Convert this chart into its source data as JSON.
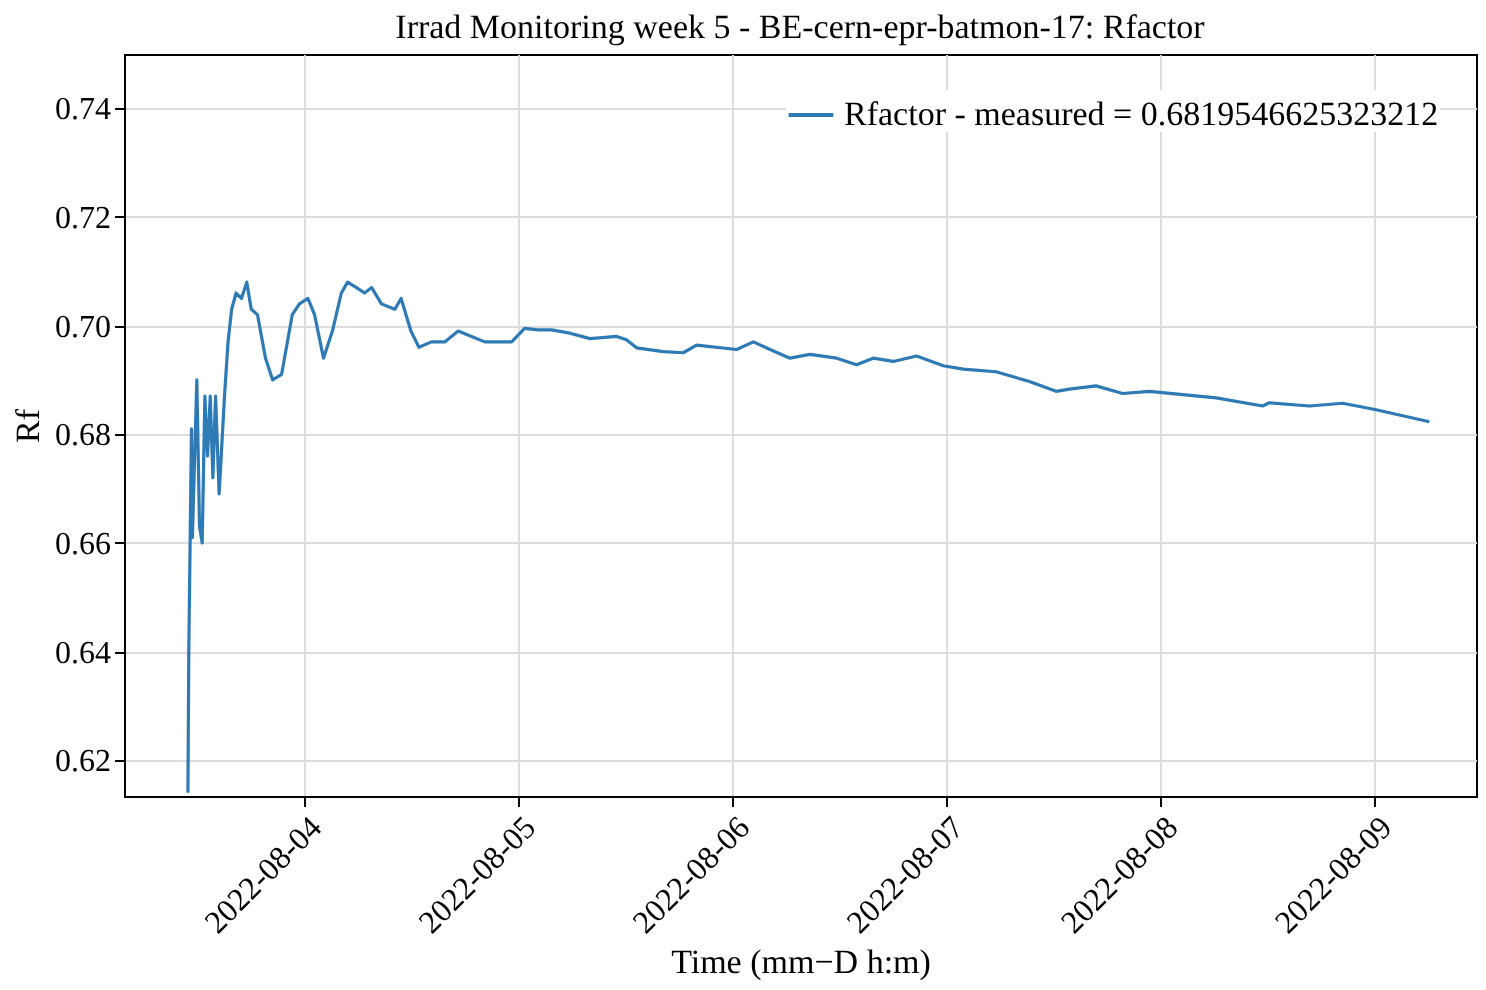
{
  "chart_data": {
    "type": "line",
    "title": "Irrad Monitoring week 5 - BE-cern-epr-batmon-17: Rfactor",
    "xlabel": "Time (mm−D h:m)",
    "ylabel": "Rf",
    "x": [
      "2022-08-03T11:00",
      "2022-08-03T11:06",
      "2022-08-03T11:24",
      "2022-08-03T11:30",
      "2022-08-03T12:00",
      "2022-08-03T12:18",
      "2022-08-03T12:36",
      "2022-08-03T12:54",
      "2022-08-03T13:12",
      "2022-08-03T13:30",
      "2022-08-03T13:48",
      "2022-08-03T14:06",
      "2022-08-03T14:30",
      "2022-08-03T15:06",
      "2022-08-03T15:30",
      "2022-08-03T15:54",
      "2022-08-03T16:24",
      "2022-08-03T17:00",
      "2022-08-03T17:36",
      "2022-08-03T18:06",
      "2022-08-03T18:48",
      "2022-08-03T19:42",
      "2022-08-03T20:30",
      "2022-08-03T21:30",
      "2022-08-03T22:42",
      "2022-08-03T23:30",
      "2022-08-04T00:27",
      "2022-08-04T01:12",
      "2022-08-04T02:12",
      "2022-08-04T03:12",
      "2022-08-04T04:12",
      "2022-08-04T04:54",
      "2022-08-04T05:54",
      "2022-08-04T06:48",
      "2022-08-04T07:36",
      "2022-08-04T08:42",
      "2022-08-04T10:12",
      "2022-08-04T10:54",
      "2022-08-04T12:00",
      "2022-08-04T12:54",
      "2022-08-04T14:18",
      "2022-08-04T15:48",
      "2022-08-04T17:18",
      "2022-08-04T18:48",
      "2022-08-04T20:18",
      "2022-08-04T21:48",
      "2022-08-04T23:18",
      "2022-08-05T00:45",
      "2022-08-05T02:15",
      "2022-08-05T03:45",
      "2022-08-05T05:50",
      "2022-08-05T08:05",
      "2022-08-05T11:05",
      "2022-08-05T12:10",
      "2022-08-05T13:18",
      "2022-08-05T16:17",
      "2022-08-05T18:32",
      "2022-08-05T20:02",
      "2022-08-06T00:31",
      "2022-08-06T02:24",
      "2022-08-06T04:16",
      "2022-08-06T06:30",
      "2022-08-06T08:45",
      "2022-08-06T11:44",
      "2022-08-06T13:58",
      "2022-08-06T15:50",
      "2022-08-06T18:05",
      "2022-08-06T20:42",
      "2022-08-06T23:41",
      "2022-08-07T01:55",
      "2022-08-07T05:36",
      "2022-08-07T09:21",
      "2022-08-07T12:20",
      "2022-08-07T13:50",
      "2022-08-07T16:49",
      "2022-08-07T19:48",
      "2022-08-07T22:48",
      "2022-08-08T02:32",
      "2022-08-08T06:17",
      "2022-08-08T11:30",
      "2022-08-08T12:15",
      "2022-08-08T16:45",
      "2022-08-08T20:29",
      "2022-08-09T00:13",
      "2022-08-09T03:12",
      "2022-08-09T06:11"
    ],
    "series": [
      {
        "name": "Rfactor - measured = 0.6819546625323212",
        "color": "#2e7ab5",
        "values": [
          0.614,
          0.64,
          0.681,
          0.661,
          0.69,
          0.663,
          0.66,
          0.687,
          0.676,
          0.687,
          0.672,
          0.687,
          0.669,
          0.687,
          0.697,
          0.703,
          0.706,
          0.705,
          0.708,
          0.703,
          0.702,
          0.694,
          0.69,
          0.691,
          0.702,
          0.704,
          0.705,
          0.702,
          0.694,
          0.699,
          0.706,
          0.708,
          0.707,
          0.706,
          0.707,
          0.704,
          0.703,
          0.705,
          0.699,
          0.696,
          0.697,
          0.697,
          0.699,
          0.698,
          0.697,
          0.697,
          0.697,
          0.6995,
          0.6992,
          0.6992,
          0.6986,
          0.6976,
          0.698,
          0.6974,
          0.6959,
          0.6952,
          0.695,
          0.6964,
          0.6956,
          0.697,
          0.6956,
          0.694,
          0.6947,
          0.694,
          0.6928,
          0.694,
          0.6934,
          0.6944,
          0.6926,
          0.692,
          0.6915,
          0.6897,
          0.6879,
          0.6883,
          0.6889,
          0.6875,
          0.6879,
          0.6873,
          0.6867,
          0.6852,
          0.6858,
          0.6852,
          0.6857,
          0.6845,
          0.6834,
          0.6823
        ]
      }
    ],
    "xlim": [
      "2022-08-03T03:50",
      "2022-08-09T11:25"
    ],
    "xticks": [
      "2022-08-04",
      "2022-08-05",
      "2022-08-06",
      "2022-08-07",
      "2022-08-08",
      "2022-08-09"
    ],
    "ylim": [
      0.6134,
      0.75
    ],
    "yticks": [
      0.62,
      0.64,
      0.66,
      0.68,
      {
        "value": 0.7,
        "label": "0.70"
      },
      0.72,
      0.74
    ],
    "grid": true,
    "legend": "top right",
    "marker": "none",
    "line_style": "solid"
  }
}
